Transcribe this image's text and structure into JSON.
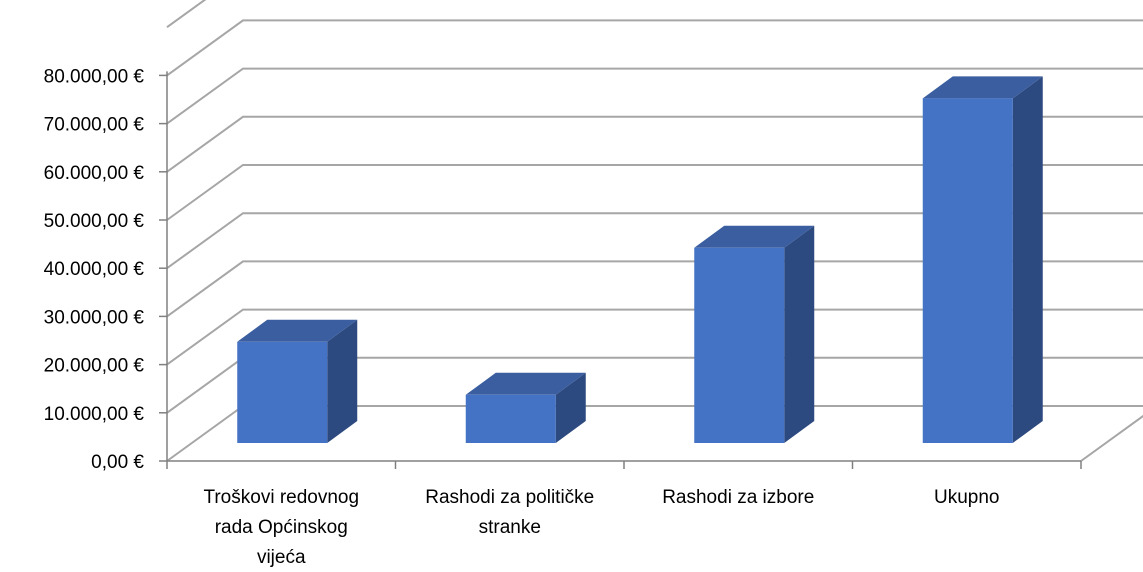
{
  "chart_data": {
    "type": "bar",
    "style": "3d-column",
    "categories": [
      [
        "Troškovi redovnog",
        "rada Općinskog",
        "vijeća"
      ],
      [
        "Rashodi za političke",
        "stranke"
      ],
      [
        "Rashodi za izbore"
      ],
      [
        "Ukupno"
      ]
    ],
    "values": [
      21000,
      10000,
      40500,
      71500
    ],
    "y_ticks": [
      "0,00 €",
      "10.000,00 €",
      "20.000,00 €",
      "30.000,00 €",
      "40.000,00 €",
      "50.000,00 €",
      "60.000,00 €",
      "70.000,00 €",
      "80.000,00 €"
    ],
    "ylim": [
      0,
      90000
    ],
    "grid": true,
    "legend": "none",
    "colors": {
      "front": "#4472C4",
      "top": "#3A5E9F",
      "side": "#2D4A80",
      "grid": "#A6A6A6",
      "axis": "#808080"
    }
  }
}
